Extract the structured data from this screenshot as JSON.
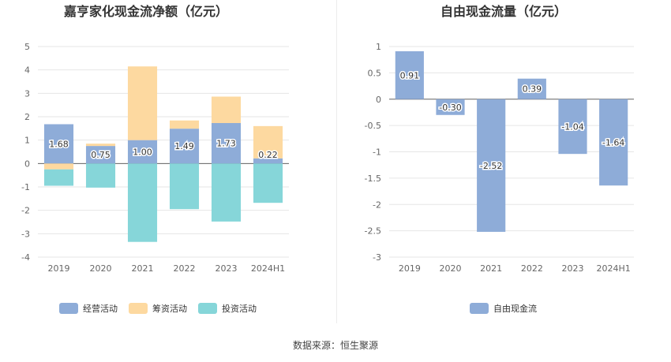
{
  "chart_data": [
    {
      "type": "bar",
      "stacked": true,
      "title": "嘉亨家化现金流净额（亿元）",
      "categories": [
        "2019",
        "2020",
        "2021",
        "2022",
        "2023",
        "2024H1"
      ],
      "ylim": [
        -4,
        5
      ],
      "yticks": [
        5,
        4,
        3,
        2,
        1,
        0,
        -1,
        -2,
        -3,
        -4
      ],
      "grid": true,
      "legend_position": "bottom",
      "series": [
        {
          "name": "经营活动",
          "color": "#8eacd8",
          "values": [
            1.68,
            0.75,
            1.0,
            1.49,
            1.73,
            0.22
          ],
          "labels": [
            "1.68",
            "0.75",
            "1.00",
            "1.49",
            "1.73",
            "0.22"
          ]
        },
        {
          "name": "筹资活动",
          "color": "#fdd9a0",
          "values": [
            -0.25,
            0.1,
            3.15,
            0.35,
            1.13,
            1.38
          ]
        },
        {
          "name": "投资活动",
          "color": "#86d6d9",
          "values": [
            -0.7,
            -1.03,
            -3.35,
            -1.95,
            -2.48,
            -1.68
          ]
        }
      ]
    },
    {
      "type": "bar",
      "title": "自由现金流量（亿元）",
      "categories": [
        "2019",
        "2020",
        "2021",
        "2022",
        "2023",
        "2024H1"
      ],
      "ylim": [
        -3,
        1
      ],
      "yticks": [
        1,
        0.5,
        0,
        -0.5,
        -1,
        -1.5,
        -2,
        -2.5,
        -3
      ],
      "grid": true,
      "legend_position": "bottom",
      "series": [
        {
          "name": "自由现金流",
          "color": "#8eacd8",
          "values": [
            0.91,
            -0.3,
            -2.52,
            0.39,
            -1.04,
            -1.64
          ],
          "labels": [
            "0.91",
            "-0.30",
            "-2.52",
            "0.39",
            "-1.04",
            "-1.64"
          ]
        }
      ]
    }
  ],
  "source": "数据来源：恒生聚源"
}
